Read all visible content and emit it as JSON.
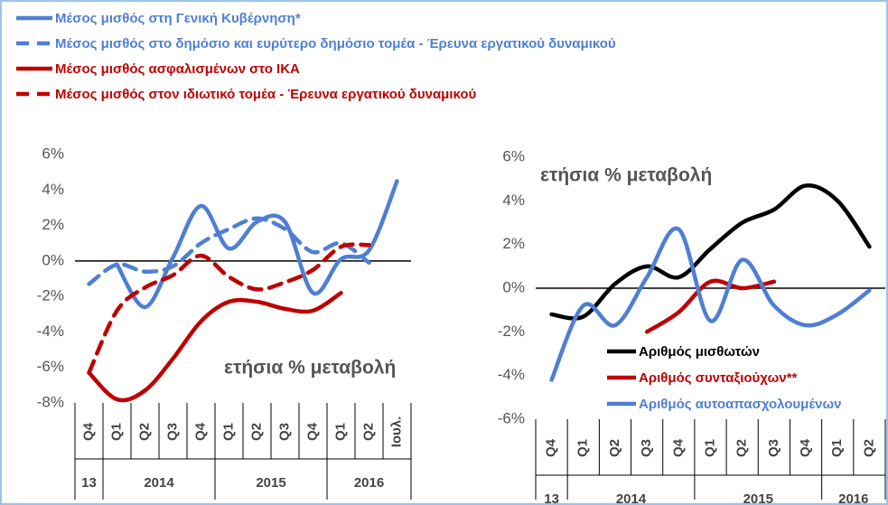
{
  "chart_data": [
    {
      "type": "line",
      "annotation": "ετήσια % μεταβολή",
      "categories": [
        "Q4",
        "Q1",
        "Q2",
        "Q3",
        "Q4",
        "Q1",
        "Q2",
        "Q3",
        "Q4",
        "Q1",
        "Q2",
        "Ιουλ."
      ],
      "year_labels": [
        "13",
        "2014",
        "2015",
        "2016"
      ],
      "legend": "top",
      "ylim": [
        -8,
        6
      ],
      "yticks": [
        {
          "value": -8,
          "label": "-8%"
        },
        {
          "value": -6,
          "label": "-6%"
        },
        {
          "value": -4,
          "label": "-4%"
        },
        {
          "value": -2,
          "label": "-2%"
        },
        {
          "value": 0,
          "label": "0%"
        },
        {
          "value": 2,
          "label": "2%"
        },
        {
          "value": 4,
          "label": "4%"
        },
        {
          "value": 6,
          "label": "6%"
        }
      ],
      "series": [
        {
          "name": "Μέσος μισθός στη Γενική Κυβέρνηση*",
          "color": "#4f7fd3",
          "dashed": false,
          "values": [
            null,
            -0.2,
            -2.6,
            0.2,
            3.1,
            0.7,
            2.2,
            2.2,
            -1.8,
            0.1,
            0.6,
            4.5
          ]
        },
        {
          "name": "Μέσος μισθός στο δημόσιο και ευρύτερο δημόσιο τομέα - Έρευνα εργατικού δυναμικού",
          "color": "#4f7fd3",
          "dashed": true,
          "values": [
            -1.3,
            -0.2,
            -0.6,
            -0.3,
            1.0,
            1.8,
            2.4,
            1.8,
            0.5,
            1.0,
            -0.1,
            null
          ]
        },
        {
          "name": "Μέσος μισθός ασφαλισμένων στο ΙΚΑ",
          "color": "#c00000",
          "dashed": false,
          "values": [
            -6.3,
            -7.8,
            -7.3,
            -5.5,
            -3.4,
            -2.3,
            -2.3,
            -2.7,
            -2.8,
            -1.8,
            null,
            null
          ]
        },
        {
          "name": "Μέσος μισθός στον ιδιωτικό τομέα - Έρευνα εργατικού δυναμικού",
          "color": "#c00000",
          "dashed": true,
          "values": [
            -6.3,
            -2.8,
            -1.5,
            -0.8,
            0.3,
            -0.9,
            -1.6,
            -1.2,
            -0.5,
            0.8,
            0.9,
            null
          ]
        }
      ]
    },
    {
      "type": "line",
      "annotation": "ετήσια % μεταβολή",
      "categories": [
        "Q4",
        "Q1",
        "Q2",
        "Q3",
        "Q4",
        "Q1",
        "Q2",
        "Q3",
        "Q4",
        "Q1",
        "Q2"
      ],
      "year_labels": [
        "13",
        "2014",
        "2015",
        "2016"
      ],
      "legend": "lower-right",
      "ylim": [
        -6,
        6
      ],
      "yticks": [
        {
          "value": -6,
          "label": "-6%"
        },
        {
          "value": -4,
          "label": "-4%"
        },
        {
          "value": -2,
          "label": "-2%"
        },
        {
          "value": 0,
          "label": "0%"
        },
        {
          "value": 2,
          "label": "2%"
        },
        {
          "value": 4,
          "label": "4%"
        },
        {
          "value": 6,
          "label": "6%"
        }
      ],
      "series": [
        {
          "name": "Αριθμός μισθωτών",
          "color": "#000000",
          "dashed": false,
          "values": [
            -1.2,
            -1.3,
            0.2,
            1.0,
            0.5,
            1.8,
            3.0,
            3.6,
            4.7,
            4.0,
            1.9
          ]
        },
        {
          "name": "Αριθμός συνταξιούχων**",
          "color": "#c00000",
          "dashed": false,
          "values": [
            null,
            null,
            null,
            -2.0,
            -1.1,
            0.3,
            0.0,
            0.3,
            null,
            null,
            null
          ]
        },
        {
          "name": "Αριθμός αυτοαπασχολουμένων",
          "color": "#4f7fd3",
          "dashed": false,
          "values": [
            -4.2,
            -0.8,
            -1.7,
            0.5,
            2.7,
            -1.5,
            1.3,
            -0.8,
            -1.7,
            -1.2,
            -0.1
          ]
        }
      ]
    }
  ]
}
